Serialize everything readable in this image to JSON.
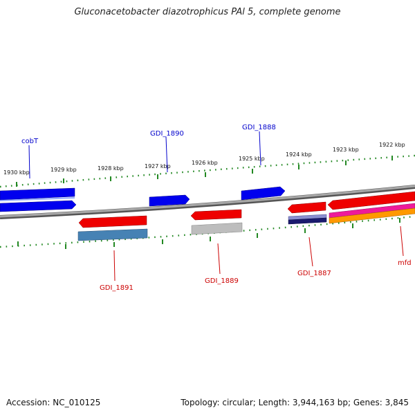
{
  "title": "Gluconacetobacter diazotrophicus PAl 5, complete genome",
  "footer": {
    "accession": "Accession: NC_010125",
    "summary": "Topology: circular; Length: 3,944,163 bp; Genes: 3,845"
  },
  "ruler_ticks": [
    "1930 kbp",
    "1929 kbp",
    "1928 kbp",
    "1927 kbp",
    "1926 kbp",
    "1925 kbp",
    "1924 kbp",
    "1923 kbp",
    "1922 kbp"
  ],
  "gene_labels": {
    "top": [
      "cobT",
      "GDI_1890",
      "GDI_1888"
    ],
    "bottom": [
      "GDI_1891",
      "GDI_1889",
      "GDI_1887",
      "mfd"
    ]
  },
  "colors": {
    "forward_gene": "#0000ee",
    "reverse_gene": "#ee0000",
    "forward_label": "#0000cc",
    "reverse_label": "#cc0000",
    "tick": "#228822",
    "backbone": "#808080"
  }
}
